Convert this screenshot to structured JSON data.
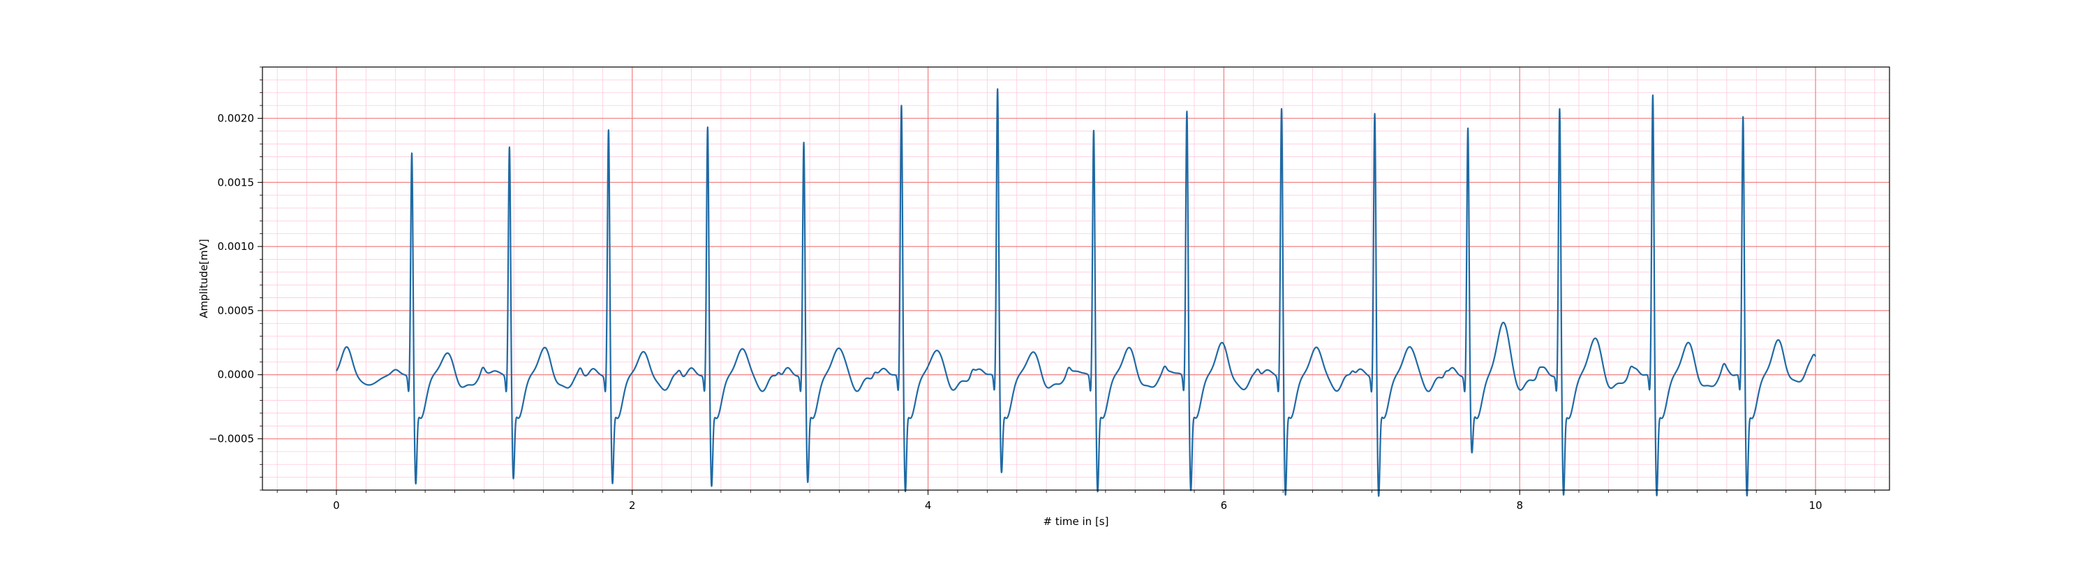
{
  "chart_data": {
    "type": "line",
    "title": "",
    "xlabel": "# time in [s]",
    "ylabel": "Amplitude[mV]",
    "xlim": [
      -0.5,
      10.5
    ],
    "ylim": [
      -0.0009,
      0.0024
    ],
    "x_ticks": [
      0,
      2,
      4,
      6,
      8,
      10
    ],
    "x_tick_labels": [
      "0",
      "2",
      "4",
      "6",
      "8",
      "10"
    ],
    "y_ticks": [
      -0.0005,
      0.0,
      0.0005,
      0.001,
      0.0015,
      0.002
    ],
    "y_tick_labels": [
      "−0.0005",
      "0.0000",
      "0.0005",
      "0.0010",
      "0.0015",
      "0.0020"
    ],
    "grid": {
      "major": true,
      "minor": true,
      "major_color": "#f08080",
      "minor_color": "#ffc8dc"
    },
    "line_color": "#1f6aa5",
    "duration_s": 10,
    "r_peaks": [
      {
        "t": 0.51,
        "amp": 0.00171,
        "s": -0.00064,
        "t_wave": 0.00017
      },
      {
        "t": 1.17,
        "amp": 0.00176,
        "s": -0.0006,
        "t_wave": 0.00021
      },
      {
        "t": 1.84,
        "amp": 0.00189,
        "s": -0.00064,
        "t_wave": 0.00018
      },
      {
        "t": 2.51,
        "amp": 0.00191,
        "s": -0.00066,
        "t_wave": 0.00021
      },
      {
        "t": 3.16,
        "amp": 0.00179,
        "s": -0.00063,
        "t_wave": 0.00022
      },
      {
        "t": 3.82,
        "amp": 0.00208,
        "s": -0.0007,
        "t_wave": 0.0002
      },
      {
        "t": 4.47,
        "amp": 0.00221,
        "s": -0.00055,
        "t_wave": 0.00018
      },
      {
        "t": 5.12,
        "amp": 0.00189,
        "s": -0.0007,
        "t_wave": 0.00021
      },
      {
        "t": 5.75,
        "amp": 0.00204,
        "s": -0.00069,
        "t_wave": 0.00025
      },
      {
        "t": 6.39,
        "amp": 0.00206,
        "s": -0.00073,
        "t_wave": 0.00022
      },
      {
        "t": 7.02,
        "amp": 0.00202,
        "s": -0.00074,
        "t_wave": 0.00023
      },
      {
        "t": 7.65,
        "amp": 0.0019,
        "s": -0.0004,
        "t_wave": 0.00042
      },
      {
        "t": 8.27,
        "amp": 0.00205,
        "s": -0.00073,
        "t_wave": 0.00029
      },
      {
        "t": 8.9,
        "amp": 0.00216,
        "s": -0.00073,
        "t_wave": 0.00025
      },
      {
        "t": 9.51,
        "amp": 0.00199,
        "s": -0.00073,
        "t_wave": 0.00027
      }
    ],
    "initial_bump": {
      "t": 0.07,
      "amp": 0.00022
    },
    "end_value": 0.00012
  }
}
